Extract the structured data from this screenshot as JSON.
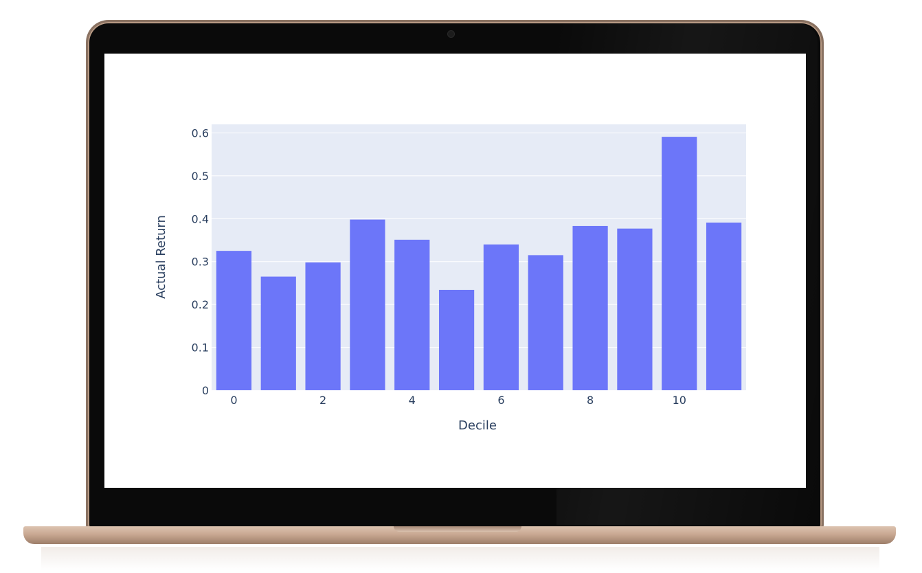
{
  "chart_data": {
    "type": "bar",
    "categories": [
      0,
      1,
      2,
      3,
      4,
      5,
      6,
      7,
      8,
      9,
      10,
      11
    ],
    "values": [
      0.325,
      0.265,
      0.298,
      0.398,
      0.351,
      0.234,
      0.34,
      0.315,
      0.383,
      0.377,
      0.591,
      0.391
    ],
    "title": "",
    "xlabel": "Decile",
    "ylabel": "Actual Return",
    "ylim": [
      0,
      0.62
    ],
    "xticks": [
      "0",
      "2",
      "4",
      "6",
      "8",
      "10"
    ],
    "yticks": [
      "0",
      "0.1",
      "0.2",
      "0.3",
      "0.4",
      "0.5",
      "0.6"
    ],
    "grid": true,
    "bar_color": "#6c76f9",
    "plot_background": "#e6ebf6",
    "gridline_color": "#ffffff"
  },
  "device": {
    "frame": "laptop"
  }
}
